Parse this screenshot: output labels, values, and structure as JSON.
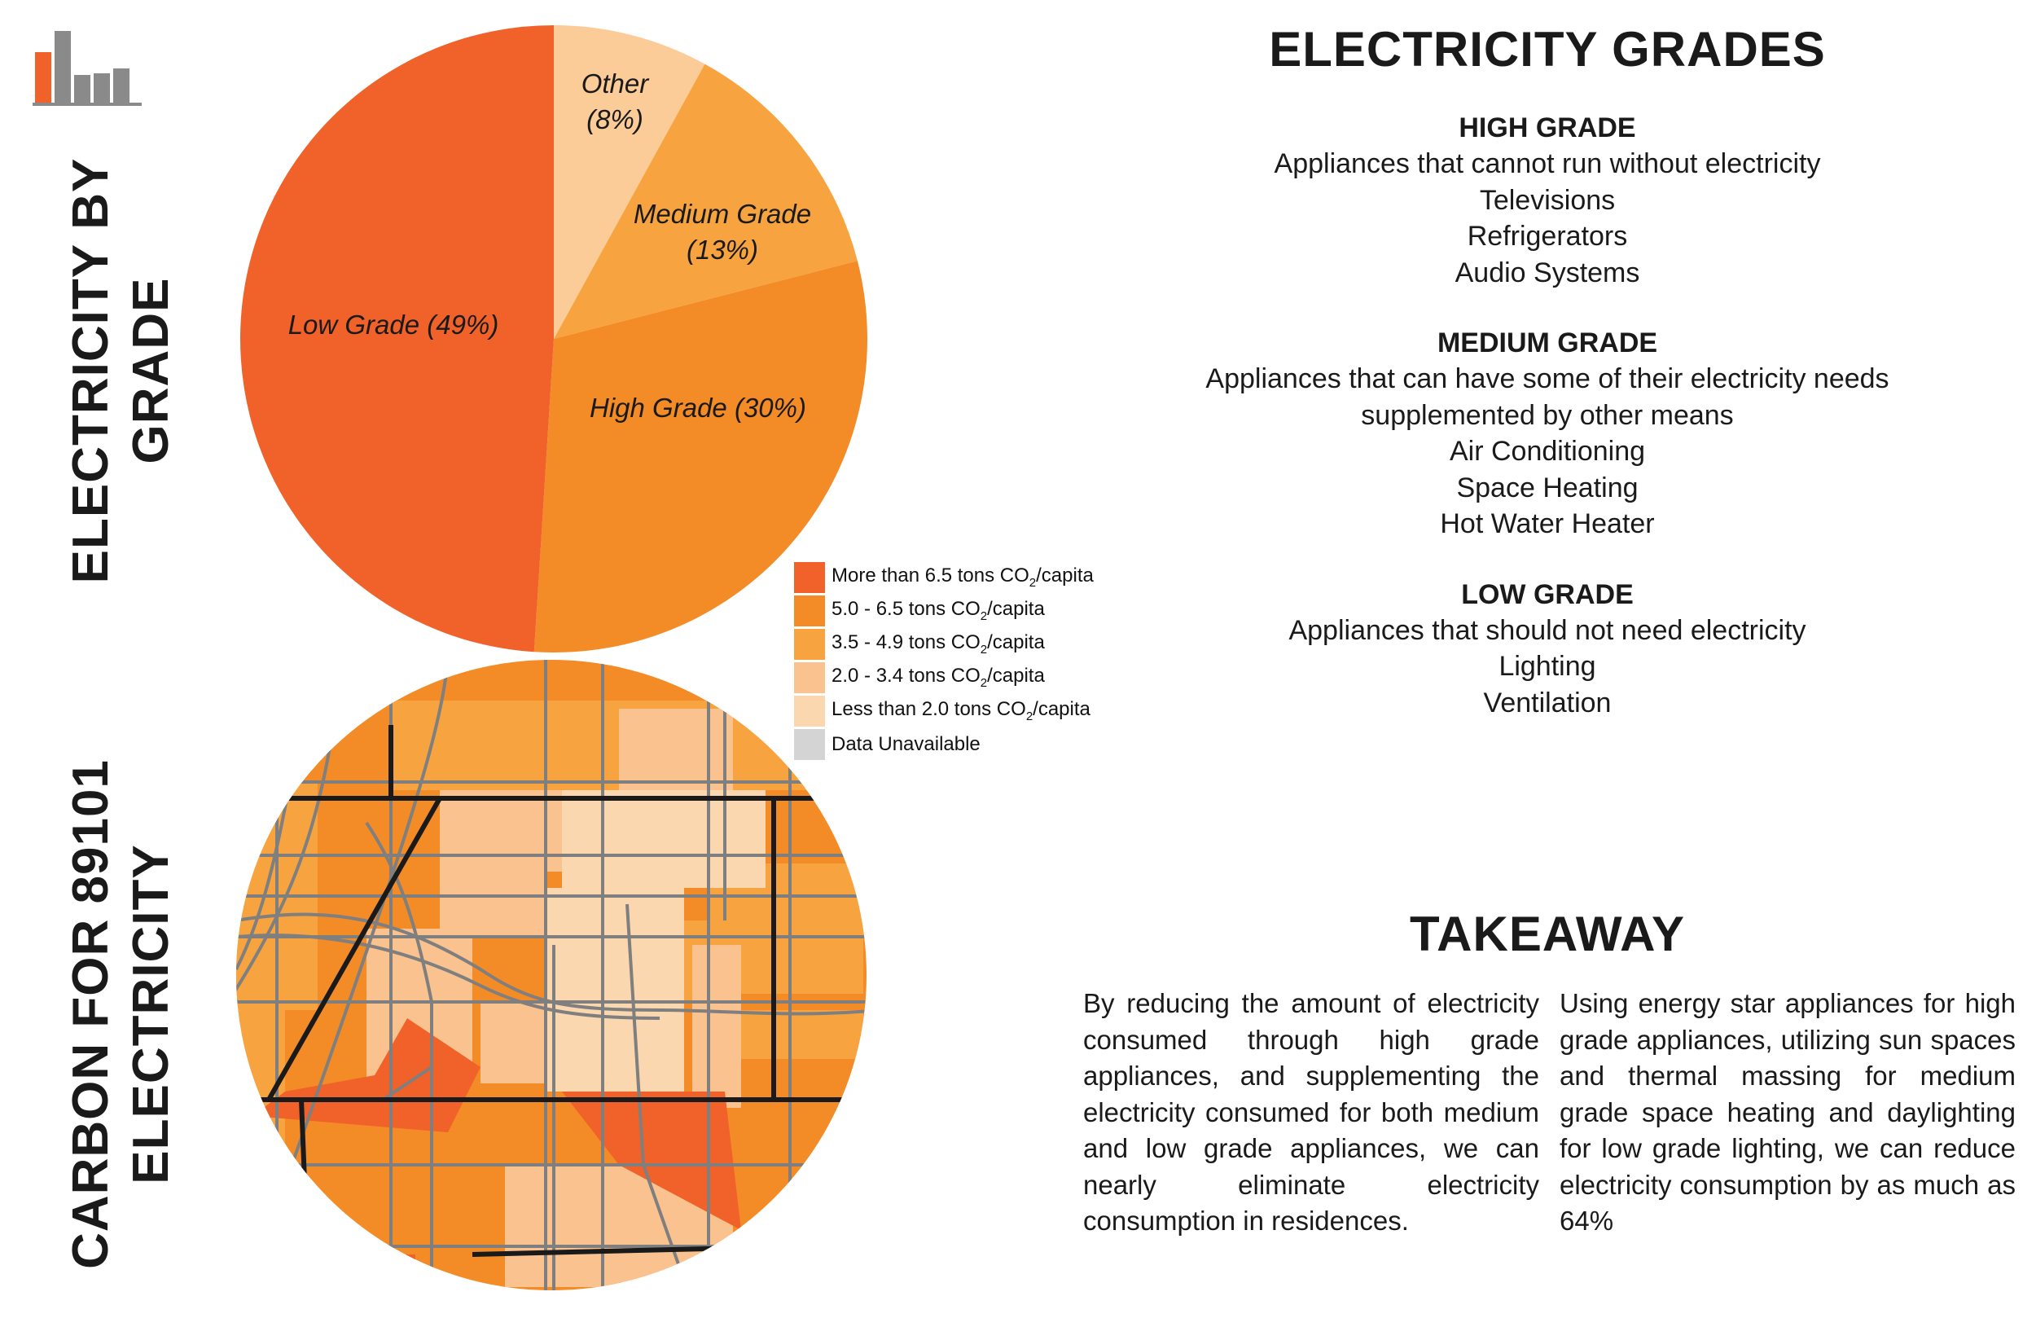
{
  "titles": {
    "left_top_line1": "ELECTRICITY BY",
    "left_top_line2": "GRADE",
    "left_bottom_line1": "CARBON FOR 89101",
    "left_bottom_line2": "ELECTRICITY"
  },
  "chart_data": {
    "type": "pie",
    "title": "Electricity by Grade",
    "slices": [
      {
        "name": "Low Grade",
        "label": "Low Grade (49%)",
        "value": 49,
        "color": "#F0622A"
      },
      {
        "name": "High Grade",
        "label": "High Grade (30%)",
        "value": 30,
        "color": "#F38B27"
      },
      {
        "name": "Medium Grade",
        "label": "Medium Grade (13%)",
        "value": 13,
        "color": "#F7A440"
      },
      {
        "name": "Other",
        "label": "Other (8%)",
        "value": 8,
        "color": "#FBCB98"
      }
    ]
  },
  "legend": {
    "items": [
      {
        "pre": "More than 6.5 tons CO",
        "post": "/capita",
        "color": "#F0622A"
      },
      {
        "pre": "5.0 - 6.5 tons CO",
        "post": "/capita",
        "color": "#F38B27"
      },
      {
        "pre": "3.5 - 4.9 tons CO",
        "post": "/capita",
        "color": "#F7A440"
      },
      {
        "pre": "2.0 - 3.4 tons CO",
        "post": "/capita",
        "color": "#FAC28E"
      },
      {
        "pre": "Less than 2.0 tons CO",
        "post": "/capita",
        "color": "#FBD7B0"
      },
      {
        "pre": "Data Unavailable",
        "post": "",
        "color": "#D4D4D4"
      }
    ],
    "subscript": "2"
  },
  "grades": {
    "title": "ELECTRICITY GRADES",
    "high": {
      "title": "HIGH GRADE",
      "lines": [
        "Appliances that cannot run without electricity",
        "Televisions",
        "Refrigerators",
        "Audio Systems"
      ]
    },
    "medium": {
      "title": "MEDIUM GRADE",
      "lines": [
        "Appliances that can have some of their electricity needs",
        "supplemented by other means",
        "Air Conditioning",
        "Space Heating",
        "Hot Water Heater"
      ]
    },
    "low": {
      "title": "LOW GRADE",
      "lines": [
        "Appliances that should not need electricity",
        "Lighting",
        "Ventilation"
      ]
    }
  },
  "takeaway": {
    "title": "TAKEAWAY",
    "para_left": "By reducing the amount of electricity consumed through high grade appliances, and supplementing the electricity consumed for both medium and low grade appliances, we can nearly eliminate electricity consumption in residences.",
    "para_right": "Using energy star appliances for high grade appliances, utilizing sun spaces and thermal massing for medium grade space heating and daylighting for low grade lighting, we can reduce electricity consumption by as much as 64%"
  },
  "colors": {
    "logo_orange": "#F0622A",
    "logo_gray": "#8A8A8A",
    "road": "#7f7f7f",
    "boundary": "#1a1a1a"
  }
}
